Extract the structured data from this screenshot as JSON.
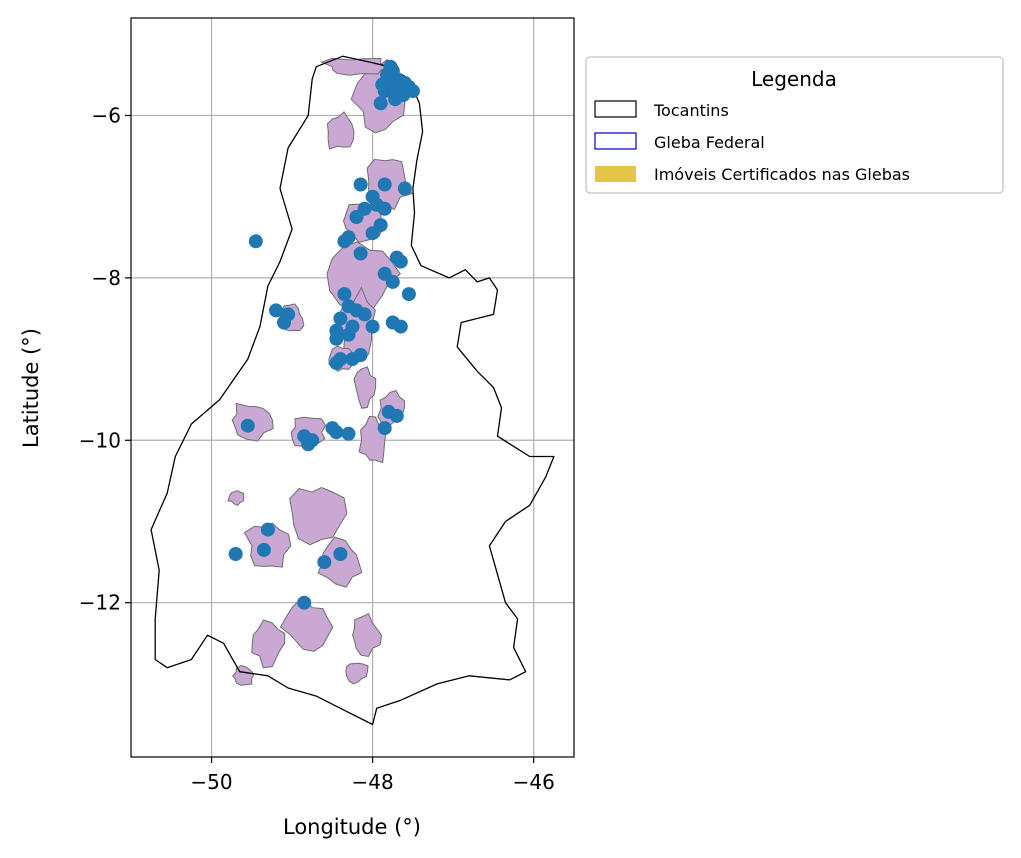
{
  "chart_data": {
    "type": "scatter",
    "title": "",
    "xlabel": "Longitude (°)",
    "ylabel": "Latitude (°)",
    "xlim": [
      -51.0,
      -45.5
    ],
    "ylim": [
      -13.9,
      -4.8
    ],
    "xticks": [
      -50,
      -48,
      -46
    ],
    "yticks": [
      -6,
      -8,
      -10,
      -12
    ],
    "xtick_labels": [
      "−50",
      "−48",
      "−46"
    ],
    "ytick_labels": [
      "−6",
      "−8",
      "−10",
      "−12"
    ],
    "grid": true,
    "colors": {
      "points": "#1f77b4",
      "state_outline": "#000000",
      "gleba_edge": "#0000cc",
      "parcel_fill": "#c9a8d4",
      "parcel_edge": "#6e6e6e",
      "certified_fill": "#e6c445",
      "grid": "#b0b0b0"
    },
    "legend": {
      "title": "Legenda",
      "placement": "outside-top-right",
      "entries": [
        {
          "label": "Tocantins",
          "style": "outline"
        },
        {
          "label": "Gleba Federal",
          "style": "blue-outline"
        },
        {
          "label": "Imóveis Certificados nas Glebas",
          "style": "yellow-fill"
        }
      ]
    },
    "tocantins_outline": [
      [
        -48.37,
        -5.27
      ],
      [
        -48.0,
        -5.35
      ],
      [
        -47.8,
        -5.4
      ],
      [
        -47.55,
        -5.55
      ],
      [
        -47.42,
        -5.85
      ],
      [
        -47.38,
        -6.2
      ],
      [
        -47.45,
        -6.55
      ],
      [
        -47.5,
        -6.9
      ],
      [
        -47.48,
        -7.2
      ],
      [
        -47.52,
        -7.6
      ],
      [
        -47.4,
        -7.85
      ],
      [
        -47.05,
        -8.0
      ],
      [
        -46.85,
        -7.9
      ],
      [
        -46.7,
        -8.05
      ],
      [
        -46.55,
        -8.0
      ],
      [
        -46.45,
        -8.15
      ],
      [
        -46.5,
        -8.45
      ],
      [
        -46.9,
        -8.55
      ],
      [
        -46.95,
        -8.85
      ],
      [
        -46.7,
        -9.15
      ],
      [
        -46.5,
        -9.35
      ],
      [
        -46.4,
        -9.6
      ],
      [
        -46.45,
        -9.95
      ],
      [
        -46.05,
        -10.2
      ],
      [
        -45.75,
        -10.2
      ],
      [
        -45.85,
        -10.45
      ],
      [
        -46.05,
        -10.8
      ],
      [
        -46.35,
        -11.0
      ],
      [
        -46.55,
        -11.3
      ],
      [
        -46.45,
        -11.65
      ],
      [
        -46.35,
        -12.0
      ],
      [
        -46.2,
        -12.2
      ],
      [
        -46.25,
        -12.55
      ],
      [
        -46.1,
        -12.85
      ],
      [
        -46.3,
        -12.95
      ],
      [
        -46.8,
        -12.9
      ],
      [
        -47.2,
        -13.0
      ],
      [
        -47.65,
        -13.2
      ],
      [
        -47.95,
        -13.3
      ],
      [
        -48.0,
        -13.5
      ],
      [
        -48.4,
        -13.3
      ],
      [
        -48.7,
        -13.15
      ],
      [
        -49.05,
        -13.05
      ],
      [
        -49.3,
        -12.9
      ],
      [
        -49.65,
        -12.85
      ],
      [
        -49.85,
        -12.5
      ],
      [
        -50.05,
        -12.4
      ],
      [
        -50.25,
        -12.7
      ],
      [
        -50.55,
        -12.8
      ],
      [
        -50.7,
        -12.7
      ],
      [
        -50.7,
        -12.2
      ],
      [
        -50.65,
        -11.6
      ],
      [
        -50.75,
        -11.1
      ],
      [
        -50.55,
        -10.65
      ],
      [
        -50.45,
        -10.2
      ],
      [
        -50.25,
        -9.8
      ],
      [
        -49.9,
        -9.5
      ],
      [
        -49.55,
        -9.0
      ],
      [
        -49.4,
        -8.6
      ],
      [
        -49.3,
        -8.1
      ],
      [
        -49.15,
        -7.8
      ],
      [
        -49.0,
        -7.4
      ],
      [
        -49.15,
        -6.9
      ],
      [
        -49.05,
        -6.4
      ],
      [
        -48.8,
        -6.0
      ],
      [
        -48.75,
        -5.55
      ],
      [
        -48.7,
        -5.4
      ],
      [
        -48.37,
        -5.27
      ]
    ],
    "gleba_patches": [
      {
        "lon": -47.9,
        "lat": -5.8,
        "rx": 0.35,
        "ry": 0.5
      },
      {
        "lon": -48.2,
        "lat": -5.4,
        "rx": 0.45,
        "ry": 0.12
      },
      {
        "lon": -48.4,
        "lat": -6.2,
        "rx": 0.2,
        "ry": 0.25
      },
      {
        "lon": -47.8,
        "lat": -6.8,
        "rx": 0.3,
        "ry": 0.35
      },
      {
        "lon": -48.1,
        "lat": -7.3,
        "rx": 0.3,
        "ry": 0.25
      },
      {
        "lon": -48.1,
        "lat": -7.95,
        "rx": 0.45,
        "ry": 0.45
      },
      {
        "lon": -48.2,
        "lat": -8.6,
        "rx": 0.25,
        "ry": 0.45
      },
      {
        "lon": -48.1,
        "lat": -9.35,
        "rx": 0.15,
        "ry": 0.25
      },
      {
        "lon": -47.75,
        "lat": -9.6,
        "rx": 0.2,
        "ry": 0.25
      },
      {
        "lon": -48.0,
        "lat": -10.0,
        "rx": 0.2,
        "ry": 0.35
      },
      {
        "lon": -49.5,
        "lat": -9.75,
        "rx": 0.3,
        "ry": 0.25
      },
      {
        "lon": -48.8,
        "lat": -9.9,
        "rx": 0.25,
        "ry": 0.2
      },
      {
        "lon": -49.0,
        "lat": -8.5,
        "rx": 0.15,
        "ry": 0.18
      },
      {
        "lon": -48.7,
        "lat": -10.9,
        "rx": 0.35,
        "ry": 0.4
      },
      {
        "lon": -49.3,
        "lat": -11.3,
        "rx": 0.3,
        "ry": 0.35
      },
      {
        "lon": -48.4,
        "lat": -11.5,
        "rx": 0.3,
        "ry": 0.3
      },
      {
        "lon": -48.8,
        "lat": -12.3,
        "rx": 0.35,
        "ry": 0.35
      },
      {
        "lon": -49.3,
        "lat": -12.5,
        "rx": 0.25,
        "ry": 0.3
      },
      {
        "lon": -48.1,
        "lat": -12.4,
        "rx": 0.2,
        "ry": 0.25
      },
      {
        "lon": -49.6,
        "lat": -12.9,
        "rx": 0.15,
        "ry": 0.12
      },
      {
        "lon": -48.2,
        "lat": -12.85,
        "rx": 0.15,
        "ry": 0.15
      },
      {
        "lon": -49.7,
        "lat": -10.7,
        "rx": 0.1,
        "ry": 0.1
      },
      {
        "lon": -48.4,
        "lat": -9.0,
        "rx": 0.18,
        "ry": 0.18
      }
    ],
    "points": [
      [
        -47.75,
        -5.45
      ],
      [
        -47.7,
        -5.55
      ],
      [
        -47.8,
        -5.6
      ],
      [
        -47.65,
        -5.65
      ],
      [
        -47.85,
        -5.7
      ],
      [
        -47.6,
        -5.6
      ],
      [
        -47.72,
        -5.8
      ],
      [
        -47.55,
        -5.65
      ],
      [
        -47.9,
        -5.85
      ],
      [
        -47.62,
        -5.75
      ],
      [
        -47.78,
        -5.4
      ],
      [
        -47.5,
        -5.7
      ],
      [
        -47.82,
        -5.5
      ],
      [
        -47.68,
        -5.7
      ],
      [
        -47.88,
        -5.62
      ],
      [
        -48.15,
        -6.85
      ],
      [
        -47.85,
        -6.85
      ],
      [
        -47.6,
        -6.9
      ],
      [
        -48.0,
        -7.0
      ],
      [
        -47.95,
        -7.1
      ],
      [
        -48.1,
        -7.15
      ],
      [
        -48.2,
        -7.25
      ],
      [
        -47.85,
        -7.15
      ],
      [
        -47.9,
        -7.35
      ],
      [
        -48.0,
        -7.45
      ],
      [
        -49.45,
        -7.55
      ],
      [
        -48.35,
        -7.55
      ],
      [
        -48.15,
        -7.7
      ],
      [
        -48.3,
        -7.5
      ],
      [
        -47.85,
        -7.95
      ],
      [
        -47.7,
        -7.75
      ],
      [
        -47.65,
        -7.8
      ],
      [
        -47.75,
        -8.05
      ],
      [
        -47.55,
        -8.2
      ],
      [
        -48.35,
        -8.2
      ],
      [
        -48.3,
        -8.35
      ],
      [
        -48.2,
        -8.4
      ],
      [
        -48.4,
        -8.5
      ],
      [
        -48.1,
        -8.45
      ],
      [
        -48.25,
        -8.6
      ],
      [
        -48.0,
        -8.6
      ],
      [
        -47.75,
        -8.55
      ],
      [
        -47.65,
        -8.6
      ],
      [
        -49.2,
        -8.4
      ],
      [
        -49.05,
        -8.45
      ],
      [
        -49.1,
        -8.55
      ],
      [
        -48.45,
        -8.65
      ],
      [
        -48.3,
        -8.7
      ],
      [
        -48.45,
        -8.75
      ],
      [
        -48.4,
        -9.0
      ],
      [
        -48.25,
        -9.0
      ],
      [
        -48.15,
        -8.95
      ],
      [
        -48.45,
        -9.05
      ],
      [
        -47.8,
        -9.65
      ],
      [
        -47.7,
        -9.7
      ],
      [
        -47.85,
        -9.85
      ],
      [
        -49.55,
        -9.82
      ],
      [
        -48.85,
        -9.95
      ],
      [
        -48.75,
        -10.0
      ],
      [
        -48.8,
        -10.05
      ],
      [
        -48.45,
        -9.9
      ],
      [
        -48.3,
        -9.92
      ],
      [
        -48.5,
        -9.85
      ],
      [
        -49.3,
        -11.1
      ],
      [
        -49.35,
        -11.35
      ],
      [
        -49.7,
        -11.4
      ],
      [
        -48.4,
        -11.4
      ],
      [
        -48.6,
        -11.5
      ],
      [
        -48.85,
        -12.0
      ]
    ]
  }
}
